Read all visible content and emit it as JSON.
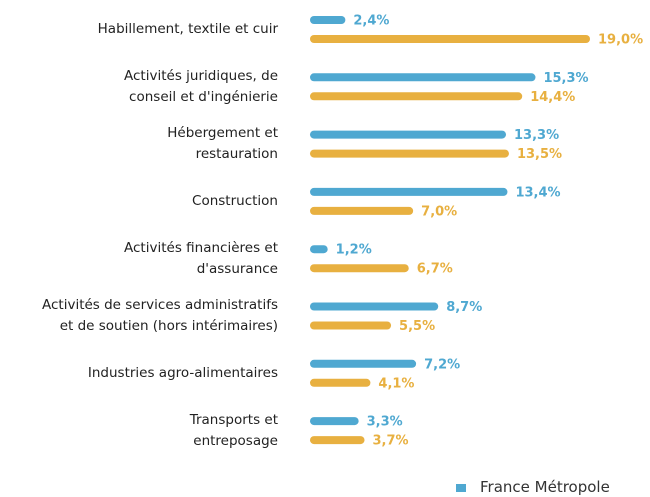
{
  "chart_data": {
    "type": "bar",
    "orientation": "horizontal",
    "categories": [
      "Habillement, textile et cuir",
      "Activités juridiques, de\nconseil et d'ingénierie",
      "Hébergement et\nrestauration",
      "Construction",
      "Activités financières et\nd'assurance",
      "Activités de services administratifs\net de soutien (hors intérimaires)",
      "Industries agro-alimentaires",
      "Transports et\nentreposage"
    ],
    "series": [
      {
        "name": "France Métropole",
        "color": "#4fa8d1",
        "values": [
          2.4,
          15.3,
          13.3,
          13.4,
          1.2,
          8.7,
          7.2,
          3.3
        ],
        "value_labels": [
          "2,4%",
          "15,3%",
          "13,3%",
          "13,4%",
          "1,2%",
          "8,7%",
          "7,2%",
          "3,3%"
        ]
      },
      {
        "color": "#e8b040",
        "values": [
          19.0,
          14.4,
          13.5,
          7.0,
          6.7,
          5.5,
          4.1,
          3.7
        ],
        "value_labels": [
          "19,0%",
          "14,4%",
          "13,5%",
          "7,0%",
          "6,7%",
          "5,5%",
          "4,1%",
          "3,7%"
        ]
      }
    ],
    "legend": "bottom-right"
  }
}
